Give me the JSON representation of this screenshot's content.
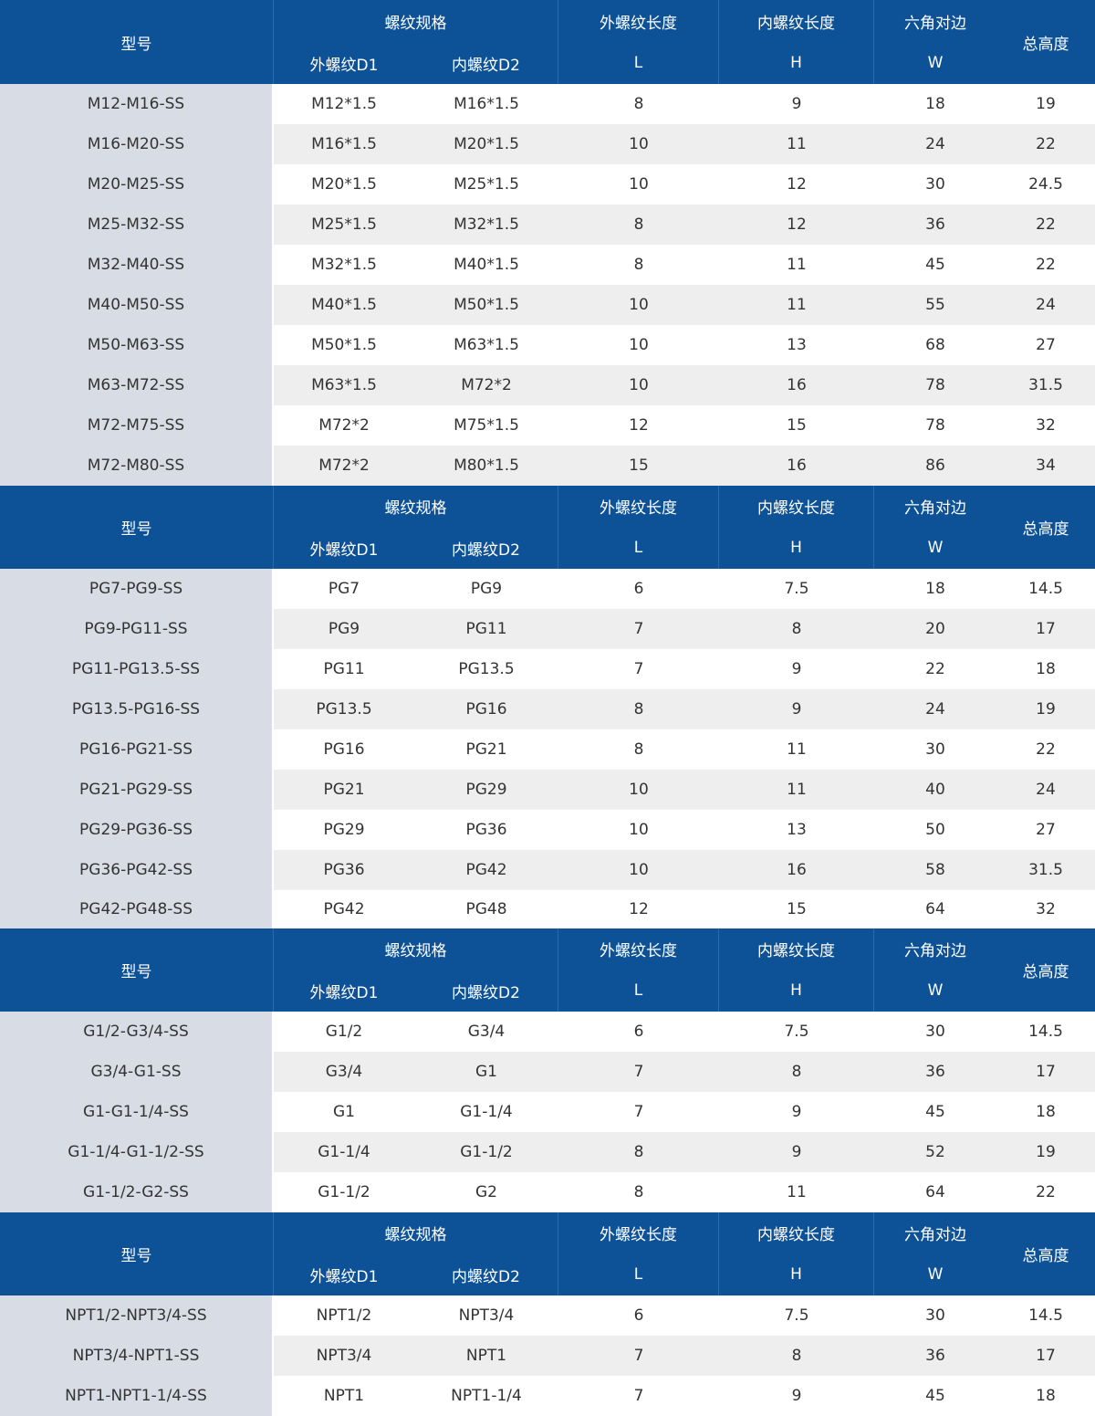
{
  "headers": {
    "model": "型号",
    "thread_spec": "螺纹规格",
    "outer_d1": "外螺纹D1",
    "inner_d2": "内螺纹D2",
    "outer_len": "外螺纹长度",
    "L": "L",
    "inner_len": "内螺纹长度",
    "H": "H",
    "hex": "六角对边",
    "W": "W",
    "total": "总高度"
  },
  "sections": [
    {
      "rows": [
        [
          "M12-M16-SS",
          "M12*1.5",
          "M16*1.5",
          "8",
          "9",
          "18",
          "19"
        ],
        [
          "M16-M20-SS",
          "M16*1.5",
          "M20*1.5",
          "10",
          "11",
          "24",
          "22"
        ],
        [
          "M20-M25-SS",
          "M20*1.5",
          "M25*1.5",
          "10",
          "12",
          "30",
          "24.5"
        ],
        [
          "M25-M32-SS",
          "M25*1.5",
          "M32*1.5",
          "8",
          "12",
          "36",
          "22"
        ],
        [
          "M32-M40-SS",
          "M32*1.5",
          "M40*1.5",
          "8",
          "11",
          "45",
          "22"
        ],
        [
          "M40-M50-SS",
          "M40*1.5",
          "M50*1.5",
          "10",
          "11",
          "55",
          "24"
        ],
        [
          "M50-M63-SS",
          "M50*1.5",
          "M63*1.5",
          "10",
          "13",
          "68",
          "27"
        ],
        [
          "M63-M72-SS",
          "M63*1.5",
          "M72*2",
          "10",
          "16",
          "78",
          "31.5"
        ],
        [
          "M72-M75-SS",
          "M72*2",
          "M75*1.5",
          "12",
          "15",
          "78",
          "32"
        ],
        [
          "M72-M80-SS",
          "M72*2",
          "M80*1.5",
          "15",
          "16",
          "86",
          "34"
        ]
      ]
    },
    {
      "rows": [
        [
          "PG7-PG9-SS",
          "PG7",
          "PG9",
          "6",
          "7.5",
          "18",
          "14.5"
        ],
        [
          "PG9-PG11-SS",
          "PG9",
          "PG11",
          "7",
          "8",
          "20",
          "17"
        ],
        [
          "PG11-PG13.5-SS",
          "PG11",
          "PG13.5",
          "7",
          "9",
          "22",
          "18"
        ],
        [
          "PG13.5-PG16-SS",
          "PG13.5",
          "PG16",
          "8",
          "9",
          "24",
          "19"
        ],
        [
          "PG16-PG21-SS",
          "PG16",
          "PG21",
          "8",
          "11",
          "30",
          "22"
        ],
        [
          "PG21-PG29-SS",
          "PG21",
          "PG29",
          "10",
          "11",
          "40",
          "24"
        ],
        [
          "PG29-PG36-SS",
          "PG29",
          "PG36",
          "10",
          "13",
          "50",
          "27"
        ],
        [
          "PG36-PG42-SS",
          "PG36",
          "PG42",
          "10",
          "16",
          "58",
          "31.5"
        ],
        [
          "PG42-PG48-SS",
          "PG42",
          "PG48",
          "12",
          "15",
          "64",
          "32"
        ]
      ]
    },
    {
      "rows": [
        [
          "G1/2-G3/4-SS",
          "G1/2",
          "G3/4",
          "6",
          "7.5",
          "30",
          "14.5"
        ],
        [
          "G3/4-G1-SS",
          "G3/4",
          "G1",
          "7",
          "8",
          "36",
          "17"
        ],
        [
          "G1-G1-1/4-SS",
          "G1",
          "G1-1/4",
          "7",
          "9",
          "45",
          "18"
        ],
        [
          "G1-1/4-G1-1/2-SS",
          "G1-1/4",
          "G1-1/2",
          "8",
          "9",
          "52",
          "19"
        ],
        [
          "G1-1/2-G2-SS",
          "G1-1/2",
          "G2",
          "8",
          "11",
          "64",
          "22"
        ]
      ]
    },
    {
      "rows": [
        [
          "NPT1/2-NPT3/4-SS",
          "NPT1/2",
          "NPT3/4",
          "6",
          "7.5",
          "30",
          "14.5"
        ],
        [
          "NPT3/4-NPT1-SS",
          "NPT3/4",
          "NPT1",
          "7",
          "8",
          "36",
          "17"
        ],
        [
          "NPT1-NPT1-1/4-SS",
          "NPT1",
          "NPT1-1/4",
          "7",
          "9",
          "45",
          "18"
        ]
      ]
    }
  ],
  "colors": {
    "header_bg": "#0d5197",
    "model_col_bg": "#d8dde5",
    "alt_row_bg": "#eeeeee"
  }
}
